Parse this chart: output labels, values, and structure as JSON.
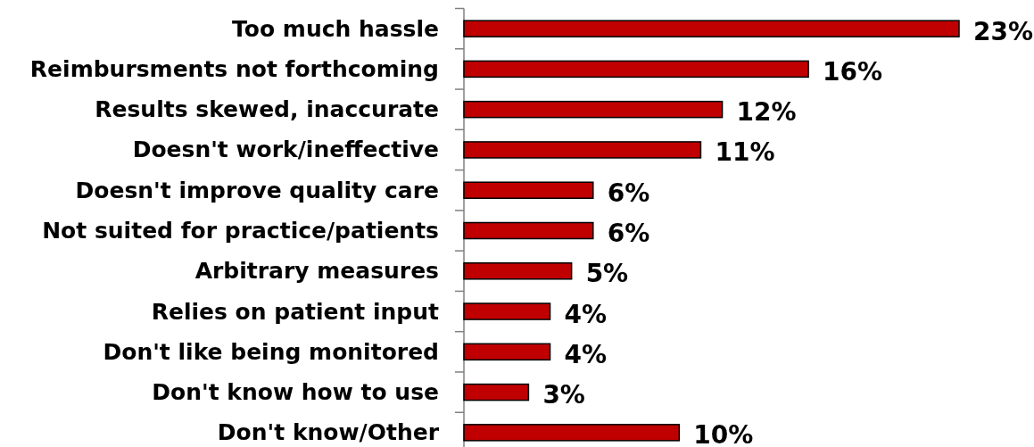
{
  "chart_data": {
    "type": "bar",
    "orientation": "horizontal",
    "categories": [
      "Too much hassle",
      "Reimbursments not forthcoming",
      "Results skewed, inaccurate",
      "Doesn't work/ineffective",
      "Doesn't improve quality care",
      "Not suited for practice/patients",
      "Arbitrary measures",
      "Relies on patient input",
      "Don't like being monitored",
      "Don't know how to use",
      "Don't know/Other"
    ],
    "values": [
      23,
      16,
      12,
      11,
      6,
      6,
      5,
      4,
      4,
      3,
      10
    ],
    "value_labels": [
      "23%",
      "16%",
      "12%",
      "11%",
      "6%",
      "6%",
      "5%",
      "4%",
      "4%",
      "3%",
      "10%"
    ],
    "color": "#c00000"
  }
}
